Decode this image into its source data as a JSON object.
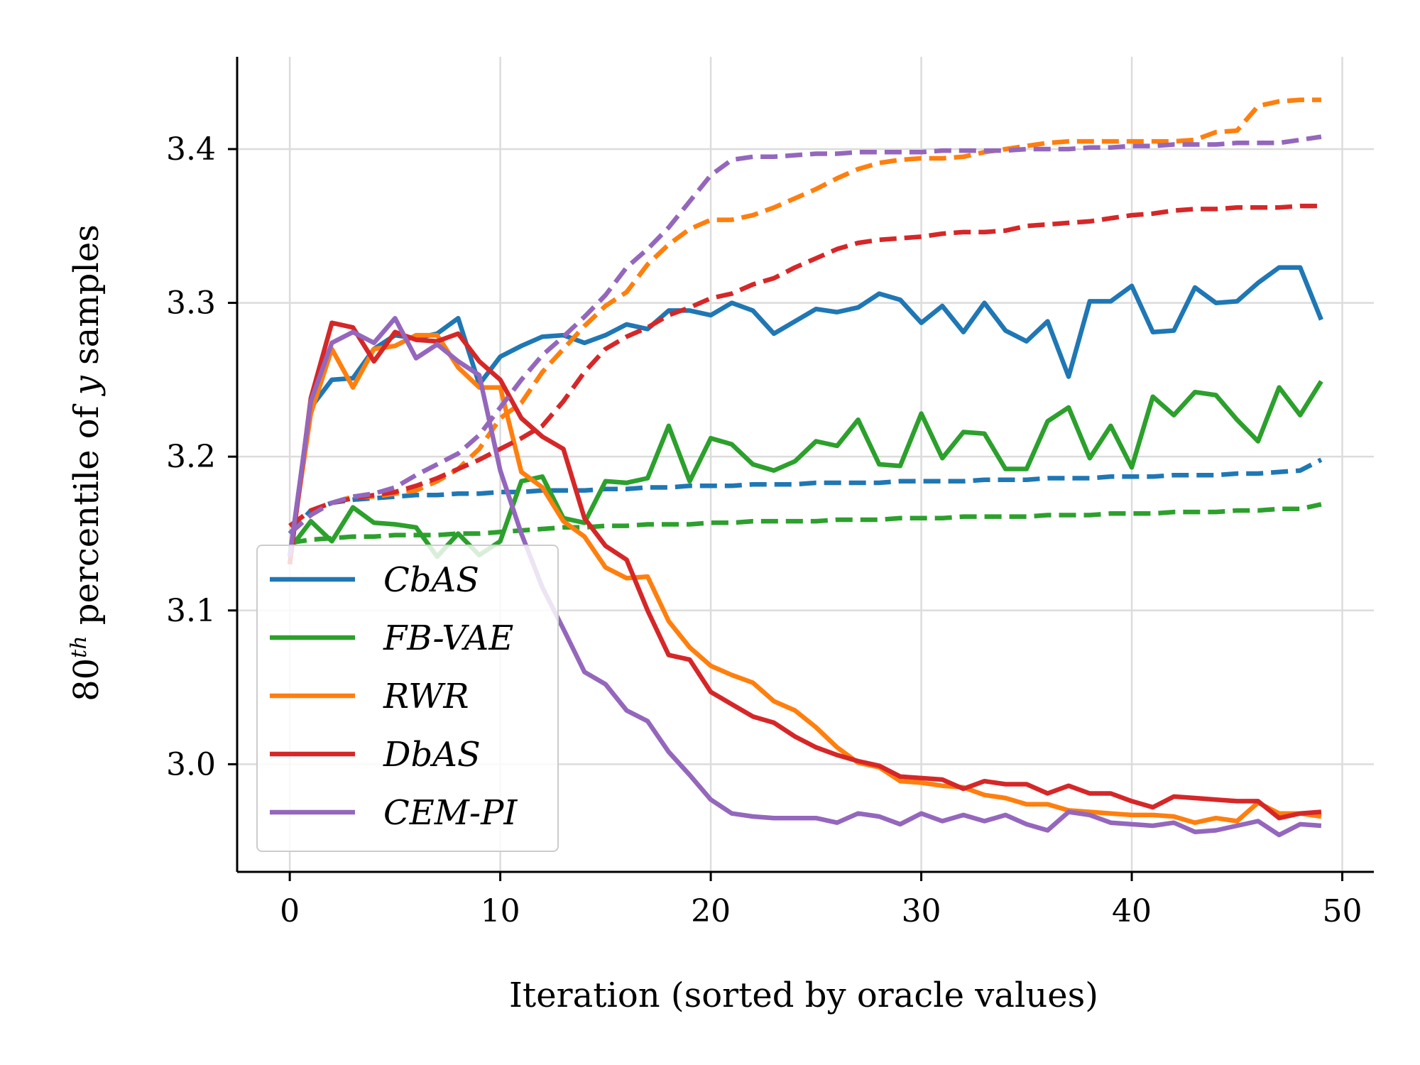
{
  "chart_data": {
    "type": "line",
    "xlabel": "Iteration (sorted by oracle values)",
    "ylabel": {
      "prefix": "80",
      "sup": "th",
      "suffix": " percentile of ",
      "var": "y",
      "end": " samples"
    },
    "xlim": [
      -2.5,
      51.5
    ],
    "ylim": [
      2.93,
      3.46
    ],
    "xticks": [
      0,
      10,
      20,
      30,
      40,
      50
    ],
    "yticks": [
      3.0,
      3.1,
      3.2,
      3.3,
      3.4
    ],
    "ytick_labels": [
      "3.0",
      "3.1",
      "3.2",
      "3.3",
      "3.4"
    ],
    "grid": true,
    "legend_position": "lower-left",
    "note": "solid lines = per-iteration value, dashed lines = running maximum",
    "series": [
      {
        "name": "CbAS",
        "color": "#1f77b4",
        "solid": [
          3.135,
          3.232,
          3.25,
          3.251,
          3.27,
          3.279,
          3.277,
          3.28,
          3.29,
          3.247,
          3.265,
          3.272,
          3.278,
          3.279,
          3.274,
          3.279,
          3.286,
          3.283,
          3.295,
          3.295,
          3.292,
          3.3,
          3.295,
          3.28,
          3.288,
          3.296,
          3.294,
          3.297,
          3.306,
          3.302,
          3.287,
          3.298,
          3.281,
          3.3,
          3.282,
          3.275,
          3.288,
          3.252,
          3.301,
          3.301,
          3.311,
          3.281,
          3.282,
          3.31,
          3.3,
          3.301,
          3.313,
          3.323,
          3.323,
          3.289
        ],
        "dashed": [
          3.15,
          3.165,
          3.17,
          3.172,
          3.173,
          3.174,
          3.175,
          3.175,
          3.176,
          3.176,
          3.177,
          3.177,
          3.178,
          3.178,
          3.178,
          3.179,
          3.179,
          3.18,
          3.18,
          3.181,
          3.181,
          3.181,
          3.182,
          3.182,
          3.182,
          3.183,
          3.183,
          3.183,
          3.183,
          3.184,
          3.184,
          3.184,
          3.184,
          3.185,
          3.185,
          3.185,
          3.186,
          3.186,
          3.186,
          3.187,
          3.187,
          3.187,
          3.188,
          3.188,
          3.188,
          3.189,
          3.189,
          3.19,
          3.191,
          3.198
        ]
      },
      {
        "name": "FB-VAE",
        "color": "#2ca02c",
        "solid": [
          3.14,
          3.158,
          3.145,
          3.167,
          3.157,
          3.156,
          3.154,
          3.135,
          3.15,
          3.136,
          3.145,
          3.184,
          3.187,
          3.16,
          3.157,
          3.184,
          3.183,
          3.186,
          3.22,
          3.184,
          3.212,
          3.208,
          3.195,
          3.191,
          3.197,
          3.21,
          3.207,
          3.224,
          3.195,
          3.194,
          3.228,
          3.199,
          3.216,
          3.215,
          3.192,
          3.192,
          3.223,
          3.232,
          3.199,
          3.22,
          3.193,
          3.239,
          3.227,
          3.242,
          3.24,
          3.224,
          3.21,
          3.245,
          3.227,
          3.249
        ],
        "dashed": [
          3.144,
          3.146,
          3.147,
          3.148,
          3.148,
          3.149,
          3.149,
          3.149,
          3.15,
          3.15,
          3.151,
          3.152,
          3.153,
          3.154,
          3.154,
          3.155,
          3.155,
          3.156,
          3.156,
          3.156,
          3.157,
          3.157,
          3.158,
          3.158,
          3.158,
          3.158,
          3.159,
          3.159,
          3.159,
          3.16,
          3.16,
          3.16,
          3.161,
          3.161,
          3.161,
          3.161,
          3.162,
          3.162,
          3.162,
          3.163,
          3.163,
          3.163,
          3.164,
          3.164,
          3.164,
          3.165,
          3.165,
          3.166,
          3.166,
          3.169
        ]
      },
      {
        "name": "RWR",
        "color": "#ff7f0e",
        "solid": [
          3.135,
          3.228,
          3.27,
          3.245,
          3.27,
          3.272,
          3.279,
          3.279,
          3.258,
          3.245,
          3.245,
          3.19,
          3.18,
          3.158,
          3.148,
          3.128,
          3.121,
          3.122,
          3.093,
          3.076,
          3.064,
          3.058,
          3.053,
          3.041,
          3.035,
          3.024,
          3.011,
          3.001,
          2.998,
          2.989,
          2.988,
          2.986,
          2.985,
          2.98,
          2.978,
          2.974,
          2.974,
          2.97,
          2.969,
          2.968,
          2.967,
          2.967,
          2.966,
          2.962,
          2.965,
          2.963,
          2.975,
          2.968,
          2.968,
          2.966
        ],
        "dashed": [
          3.155,
          3.165,
          3.17,
          3.174,
          3.174,
          3.176,
          3.178,
          3.184,
          3.192,
          3.205,
          3.225,
          3.235,
          3.255,
          3.27,
          3.285,
          3.298,
          3.307,
          3.325,
          3.338,
          3.348,
          3.354,
          3.354,
          3.357,
          3.362,
          3.368,
          3.374,
          3.381,
          3.387,
          3.391,
          3.393,
          3.394,
          3.394,
          3.395,
          3.398,
          3.4,
          3.402,
          3.404,
          3.405,
          3.405,
          3.405,
          3.405,
          3.405,
          3.405,
          3.406,
          3.411,
          3.412,
          3.428,
          3.431,
          3.432,
          3.432
        ]
      },
      {
        "name": "DbAS",
        "color": "#d62728",
        "solid": [
          3.13,
          3.238,
          3.287,
          3.284,
          3.262,
          3.281,
          3.276,
          3.275,
          3.28,
          3.262,
          3.25,
          3.225,
          3.213,
          3.205,
          3.16,
          3.142,
          3.133,
          3.1,
          3.071,
          3.068,
          3.047,
          3.039,
          3.031,
          3.027,
          3.018,
          3.011,
          3.006,
          3.002,
          2.999,
          2.992,
          2.991,
          2.99,
          2.984,
          2.989,
          2.987,
          2.987,
          2.981,
          2.986,
          2.981,
          2.981,
          2.976,
          2.972,
          2.979,
          2.978,
          2.977,
          2.976,
          2.976,
          2.965,
          2.968,
          2.969
        ],
        "dashed": [
          3.155,
          3.165,
          3.17,
          3.173,
          3.175,
          3.177,
          3.181,
          3.186,
          3.192,
          3.198,
          3.205,
          3.212,
          3.22,
          3.236,
          3.255,
          3.27,
          3.278,
          3.284,
          3.292,
          3.297,
          3.303,
          3.306,
          3.312,
          3.316,
          3.323,
          3.329,
          3.335,
          3.339,
          3.341,
          3.342,
          3.343,
          3.345,
          3.346,
          3.346,
          3.347,
          3.35,
          3.351,
          3.352,
          3.353,
          3.355,
          3.357,
          3.358,
          3.36,
          3.361,
          3.361,
          3.362,
          3.362,
          3.362,
          3.363,
          3.363
        ]
      },
      {
        "name": "CEM-PI",
        "color": "#9467bd",
        "solid": [
          3.135,
          3.236,
          3.274,
          3.281,
          3.274,
          3.29,
          3.264,
          3.273,
          3.262,
          3.253,
          3.191,
          3.15,
          3.115,
          3.088,
          3.06,
          3.052,
          3.035,
          3.028,
          3.008,
          2.993,
          2.977,
          2.968,
          2.966,
          2.965,
          2.965,
          2.965,
          2.962,
          2.968,
          2.966,
          2.961,
          2.968,
          2.963,
          2.967,
          2.963,
          2.967,
          2.961,
          2.957,
          2.969,
          2.967,
          2.962,
          2.961,
          2.96,
          2.962,
          2.956,
          2.957,
          2.96,
          2.963,
          2.954,
          2.961,
          2.96
        ],
        "dashed": [
          3.15,
          3.162,
          3.17,
          3.174,
          3.176,
          3.18,
          3.188,
          3.195,
          3.202,
          3.214,
          3.232,
          3.25,
          3.266,
          3.278,
          3.291,
          3.305,
          3.323,
          3.335,
          3.349,
          3.366,
          3.383,
          3.393,
          3.395,
          3.395,
          3.396,
          3.397,
          3.397,
          3.398,
          3.398,
          3.398,
          3.398,
          3.399,
          3.399,
          3.399,
          3.399,
          3.4,
          3.4,
          3.4,
          3.401,
          3.401,
          3.402,
          3.402,
          3.403,
          3.403,
          3.403,
          3.404,
          3.404,
          3.404,
          3.406,
          3.408
        ]
      }
    ]
  }
}
